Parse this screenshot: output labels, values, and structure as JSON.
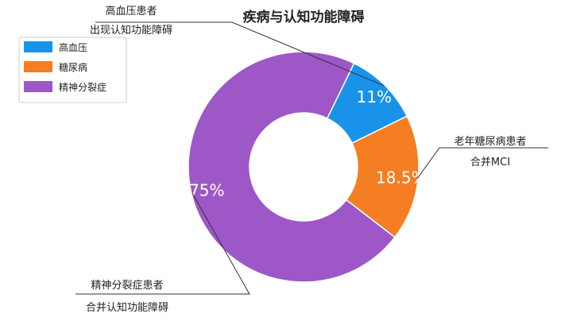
{
  "chart_data": {
    "type": "pie",
    "title": "疾病与认知功能障碍",
    "categories": [
      "高血压",
      "糖尿病",
      "精神分裂症"
    ],
    "values": [
      11,
      18.5,
      75
    ],
    "value_labels": [
      "11%",
      "18.5%",
      "75%"
    ],
    "colors": [
      "#1993ea",
      "#f57d22",
      "#9d57c6"
    ],
    "legend": {
      "placement": "top-left",
      "entries": [
        "高血压",
        "糖尿病",
        "精神分裂症"
      ]
    },
    "annotations": [
      {
        "target": "高血压",
        "lines": [
          "高血压患者",
          "出现认知功能障碍"
        ]
      },
      {
        "target": "糖尿病",
        "lines": [
          "老年糖尿病患者",
          "合并MCI"
        ]
      },
      {
        "target": "精神分裂症",
        "lines": [
          "精神分裂症患者",
          "合并认知功能障碍"
        ]
      }
    ],
    "donut": true
  }
}
